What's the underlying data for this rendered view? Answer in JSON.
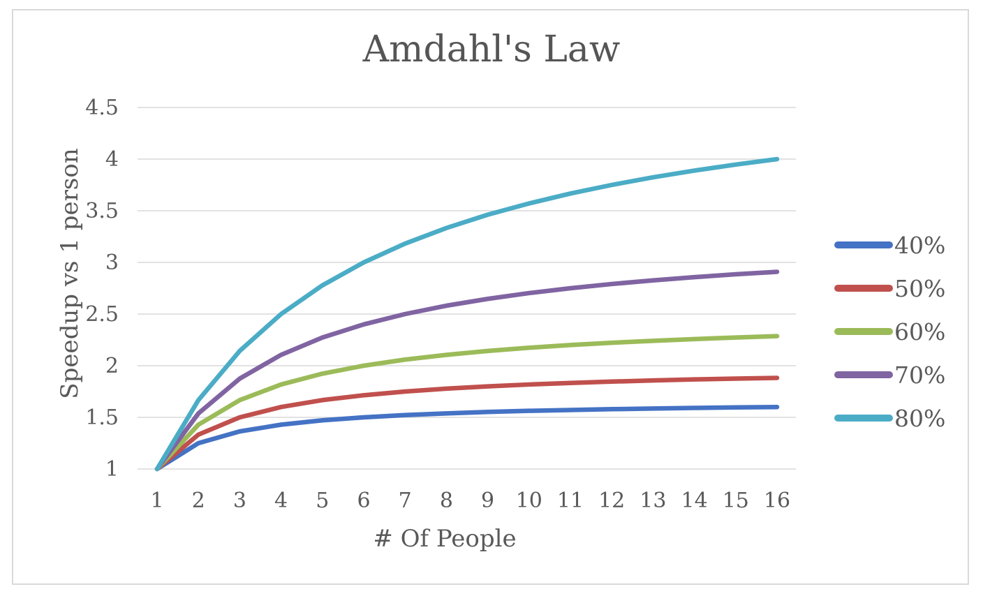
{
  "chart_data": {
    "type": "line",
    "title": "Amdahl's Law",
    "xlabel": "# Of People",
    "ylabel": "Speedup vs 1 person",
    "x": [
      1,
      2,
      3,
      4,
      5,
      6,
      7,
      8,
      9,
      10,
      11,
      12,
      13,
      14,
      15,
      16
    ],
    "xticks": [
      "1",
      "2",
      "3",
      "4",
      "5",
      "6",
      "7",
      "8",
      "9",
      "10",
      "11",
      "12",
      "13",
      "14",
      "15",
      "16"
    ],
    "yticks": [
      "1",
      "1.5",
      "2",
      "2.5",
      "3",
      "3.5",
      "4",
      "4.5"
    ],
    "xlim": [
      1,
      16
    ],
    "ylim": [
      1,
      4.5
    ],
    "grid": true,
    "legend_position": "right",
    "series": [
      {
        "name": "40%",
        "color": "#4472C4",
        "values": [
          1,
          1.25,
          1.364,
          1.429,
          1.471,
          1.5,
          1.522,
          1.538,
          1.552,
          1.563,
          1.571,
          1.579,
          1.585,
          1.591,
          1.596,
          1.6
        ]
      },
      {
        "name": "50%",
        "color": "#C0504D",
        "values": [
          1,
          1.333,
          1.5,
          1.6,
          1.667,
          1.714,
          1.75,
          1.778,
          1.8,
          1.818,
          1.833,
          1.846,
          1.857,
          1.867,
          1.875,
          1.882
        ]
      },
      {
        "name": "60%",
        "color": "#9BBB59",
        "values": [
          1,
          1.429,
          1.667,
          1.818,
          1.923,
          2,
          2.059,
          2.105,
          2.143,
          2.174,
          2.2,
          2.222,
          2.241,
          2.258,
          2.273,
          2.286
        ]
      },
      {
        "name": "70%",
        "color": "#8064A2",
        "values": [
          1,
          1.538,
          1.875,
          2.105,
          2.273,
          2.4,
          2.5,
          2.581,
          2.647,
          2.703,
          2.75,
          2.791,
          2.826,
          2.857,
          2.885,
          2.909
        ]
      },
      {
        "name": "80%",
        "color": "#4BACC6",
        "values": [
          1,
          1.667,
          2.143,
          2.5,
          2.778,
          3,
          3.182,
          3.333,
          3.462,
          3.571,
          3.667,
          3.75,
          3.824,
          3.889,
          3.947,
          4
        ]
      }
    ],
    "styles": {
      "text_color": "#595959",
      "title_color": "#555555",
      "grid_color": "#D9D9D9",
      "border_color": "#D9D9D9",
      "background": "#FFFFFF"
    }
  }
}
